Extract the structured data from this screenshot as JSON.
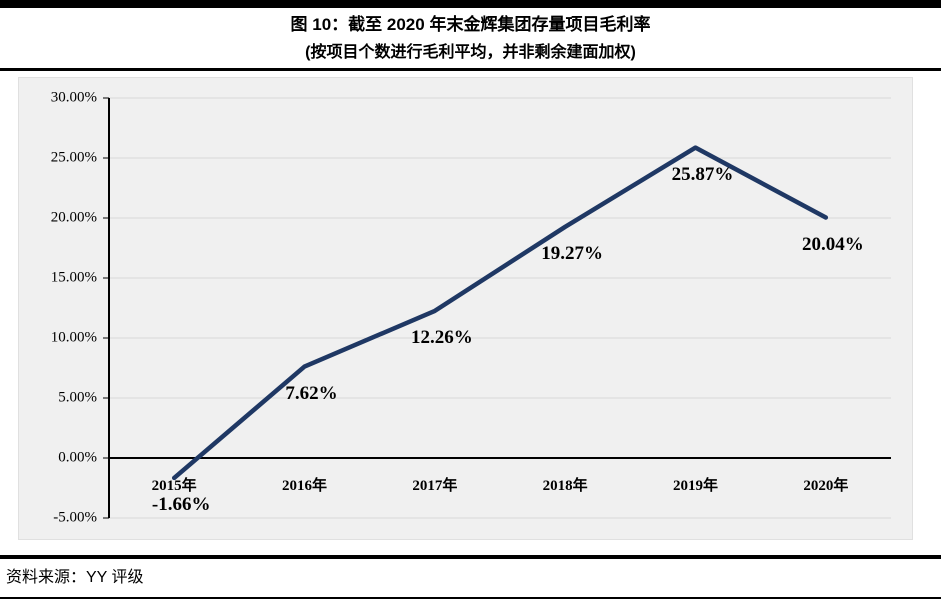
{
  "header": {
    "title": "图 10：截至 2020 年末金辉集团存量项目毛利率",
    "subtitle": "(按项目个数进行毛利平均，并非剩余建面加权)"
  },
  "footer": {
    "source": "资料来源：YY 评级"
  },
  "chart_data": {
    "type": "line",
    "title": "图 10：截至 2020 年末金辉集团存量项目毛利率",
    "subtitle": "(按项目个数进行毛利平均，并非剩余建面加权)",
    "categories": [
      "2015年",
      "2016年",
      "2017年",
      "2018年",
      "2019年",
      "2020年"
    ],
    "series": [
      {
        "name": "存量项目毛利率",
        "values": [
          -1.66,
          7.62,
          12.26,
          19.27,
          25.87,
          20.04
        ],
        "data_labels": [
          "-1.66%",
          "7.62%",
          "12.26%",
          "19.27%",
          "25.87%",
          "20.04%"
        ]
      }
    ],
    "xlabel": "",
    "ylabel": "",
    "ylim": [
      -5,
      30
    ],
    "y_step": 5,
    "y_tick_labels": [
      "30.00%",
      "25.00%",
      "20.00%",
      "15.00%",
      "10.00%",
      "5.00%",
      "0.00%",
      "-5.00%"
    ],
    "grid": true,
    "legend": "none",
    "line_color": "#1f3864",
    "plot_background": "#f0f0f0",
    "gridline_color": "#d9d9d9",
    "axis_color": "#000000"
  }
}
